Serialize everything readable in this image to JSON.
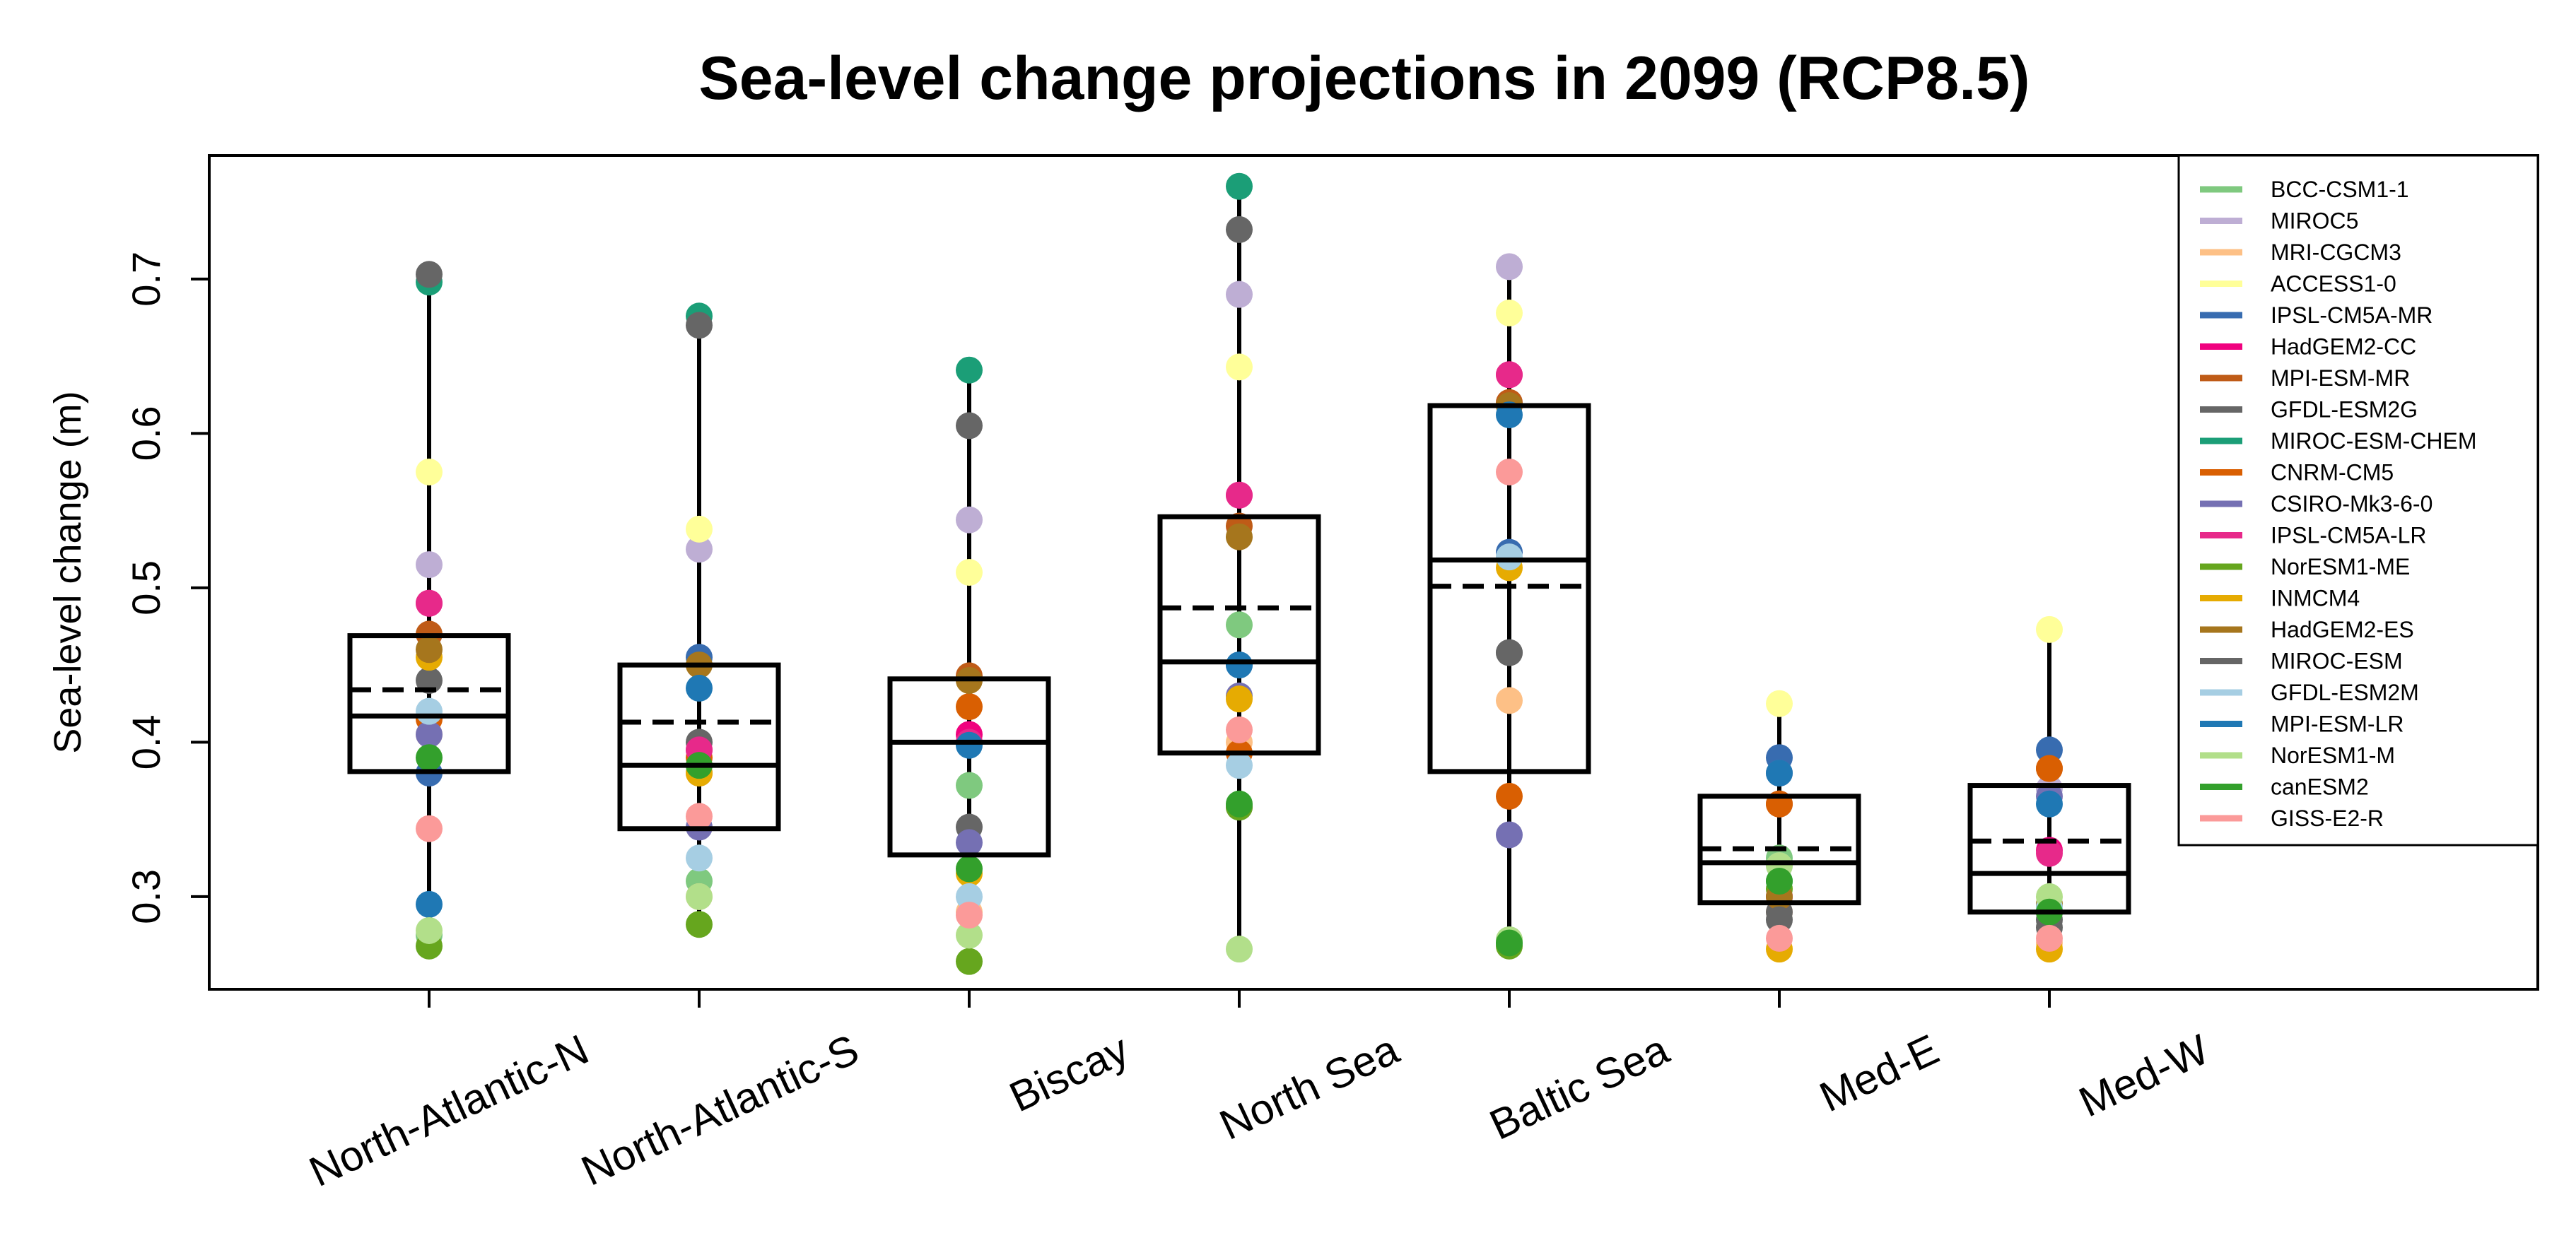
{
  "chart_data": {
    "type": "box",
    "title": "Sea-level change projections in 2099 (RCP8.5)",
    "xlabel": "",
    "ylabel": "Sea-level change (m)",
    "ylim": [
      0.24,
      0.78
    ],
    "yticks": [
      "0.3",
      "0.4",
      "0.5",
      "0.6",
      "0.7"
    ],
    "grid": false,
    "legend_position": "top-right",
    "categories": [
      "North-Atlantic-N",
      "North-Atlantic-S",
      "Biscay",
      "North Sea",
      "Baltic Sea",
      "Med-E",
      "Med-W"
    ],
    "models": [
      {
        "name": "BCC-CSM1-1",
        "color": "#7fc97f"
      },
      {
        "name": "MIROC5",
        "color": "#beaed4"
      },
      {
        "name": "MRI-CGCM3",
        "color": "#fdc086"
      },
      {
        "name": "ACCESS1-0",
        "color": "#ffff99"
      },
      {
        "name": "IPSL-CM5A-MR",
        "color": "#386cb0"
      },
      {
        "name": "HadGEM2-CC",
        "color": "#f0027f"
      },
      {
        "name": "MPI-ESM-MR",
        "color": "#bf5b17"
      },
      {
        "name": "GFDL-ESM2G",
        "color": "#666666"
      },
      {
        "name": "MIROC-ESM-CHEM",
        "color": "#1b9e77"
      },
      {
        "name": "CNRM-CM5",
        "color": "#d95f02"
      },
      {
        "name": "CSIRO-Mk3-6-0",
        "color": "#7570b3"
      },
      {
        "name": "IPSL-CM5A-LR",
        "color": "#e7298a"
      },
      {
        "name": "NorESM1-ME",
        "color": "#66a61e"
      },
      {
        "name": "INMCM4",
        "color": "#e6ab02"
      },
      {
        "name": "HadGEM2-ES",
        "color": "#a6761d"
      },
      {
        "name": "MIROC-ESM",
        "color": "#666666"
      },
      {
        "name": "GFDL-ESM2M",
        "color": "#a6cee3"
      },
      {
        "name": "MPI-ESM-LR",
        "color": "#1f78b4"
      },
      {
        "name": "NorESM1-M",
        "color": "#b2df8a"
      },
      {
        "name": "canESM2",
        "color": "#33a02c"
      },
      {
        "name": "GISS-E2-R",
        "color": "#fb9a99"
      }
    ],
    "boxes": [
      {
        "category": "North-Atlantic-N",
        "min": 0.268,
        "q1": 0.381,
        "median": 0.417,
        "mean": 0.434,
        "q3": 0.469,
        "max": 0.703
      },
      {
        "category": "North-Atlantic-S",
        "min": 0.28,
        "q1": 0.344,
        "median": 0.385,
        "mean": 0.413,
        "q3": 0.45,
        "max": 0.676
      },
      {
        "category": "Biscay",
        "min": 0.258,
        "q1": 0.327,
        "median": 0.4,
        "mean": null,
        "q3": 0.441,
        "max": 0.641
      },
      {
        "category": "North Sea",
        "min": 0.266,
        "q1": 0.393,
        "median": 0.452,
        "mean": 0.487,
        "q3": 0.546,
        "max": 0.76
      },
      {
        "category": "Baltic Sea",
        "min": 0.268,
        "q1": 0.381,
        "median": 0.518,
        "mean": 0.501,
        "q3": 0.618,
        "max": 0.708
      },
      {
        "category": "Med-E",
        "min": 0.266,
        "q1": 0.296,
        "median": 0.322,
        "mean": 0.331,
        "q3": 0.365,
        "max": 0.425
      },
      {
        "category": "Med-W",
        "min": 0.266,
        "q1": 0.29,
        "median": 0.315,
        "mean": 0.336,
        "q3": 0.372,
        "max": 0.473
      }
    ],
    "points": {
      "North-Atlantic-N": [
        0.275,
        0.515,
        0.405,
        0.575,
        0.38,
        0.49,
        0.47,
        0.44,
        0.698,
        0.415,
        0.405,
        0.49,
        0.268,
        0.455,
        0.46,
        0.703,
        0.42,
        0.295,
        0.278,
        0.39,
        0.344
      ],
      "North-Atlantic-S": [
        0.31,
        0.525,
        0.3,
        0.538,
        0.455,
        0.395,
        0.38,
        0.4,
        0.676,
        0.39,
        0.345,
        0.395,
        0.282,
        0.38,
        0.45,
        0.67,
        0.325,
        0.435,
        0.3,
        0.385,
        0.352
      ],
      "Biscay": [
        0.372,
        0.544,
        0.29,
        0.51,
        0.4,
        0.405,
        0.443,
        0.345,
        0.641,
        0.423,
        0.335,
        0.4,
        0.258,
        0.315,
        0.44,
        0.605,
        0.3,
        0.398,
        0.275,
        0.318,
        0.288
      ],
      "North Sea": [
        0.476,
        0.69,
        0.4,
        0.643,
        0.45,
        0.56,
        0.54,
        0.358,
        0.76,
        0.393,
        0.43,
        0.56,
        0.358,
        0.428,
        0.533,
        0.732,
        0.385,
        0.45,
        0.266,
        0.36,
        0.408
      ],
      "Baltic Sea": [
        0.272,
        0.708,
        0.427,
        0.678,
        0.523,
        0.638,
        0.62,
        0.458,
        0.27,
        0.365,
        0.34,
        0.638,
        0.268,
        0.513,
        0.618,
        0.458,
        0.52,
        0.612,
        0.272,
        0.27,
        0.575
      ],
      "Med-E": [
        0.325,
        0.36,
        0.29,
        0.425,
        0.39,
        0.3,
        0.36,
        0.29,
        0.31,
        0.36,
        0.38,
        0.3,
        0.305,
        0.266,
        0.3,
        0.285,
        0.32,
        0.38,
        0.32,
        0.31,
        0.273
      ],
      "Med-W": [
        0.295,
        0.37,
        0.27,
        0.473,
        0.395,
        0.33,
        0.383,
        0.28,
        0.293,
        0.383,
        0.365,
        0.328,
        0.29,
        0.266,
        0.295,
        0.285,
        0.293,
        0.36,
        0.3,
        0.29,
        0.273
      ]
    }
  }
}
